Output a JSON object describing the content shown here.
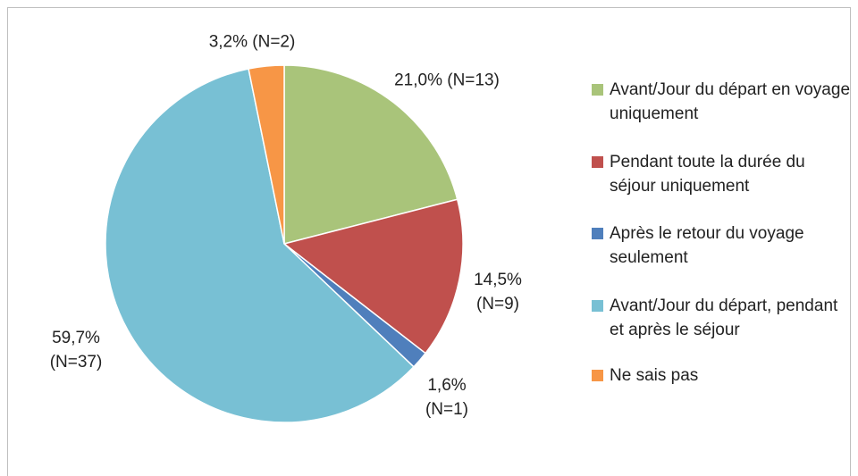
{
  "chart_data": {
    "type": "pie",
    "categories": [
      "Avant/Jour du départ en voyage uniquement",
      "Pendant toute la durée du séjour uniquement",
      "Après le retour du voyage seulement",
      "Avant/Jour du départ, pendant et après le séjour",
      "Ne sais pas"
    ],
    "values": [
      21.0,
      14.5,
      1.6,
      59.7,
      3.2
    ],
    "value_labels": [
      "21,0% (N=13)",
      "14,5% (N=9)",
      "1,6% (N=1)",
      "59,7% (N=37)",
      "3,2% (N=2)"
    ],
    "colors": [
      "#a9c47a",
      "#c0504d",
      "#4f7fbc",
      "#78c0d4",
      "#f79646"
    ]
  }
}
